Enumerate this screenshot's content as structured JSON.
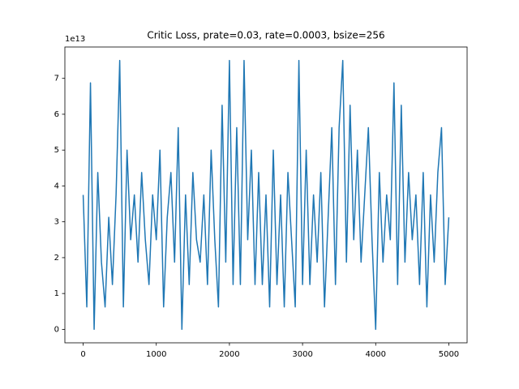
{
  "chart_data": {
    "type": "line",
    "title": "Critic Loss, prate=0.03, rate=0.0003, bsize=256",
    "y_offset_label": "1e13",
    "x": [
      0,
      50,
      100,
      150,
      200,
      250,
      300,
      350,
      400,
      450,
      500,
      550,
      600,
      650,
      700,
      750,
      800,
      850,
      900,
      950,
      1000,
      1050,
      1100,
      1150,
      1200,
      1250,
      1300,
      1350,
      1400,
      1450,
      1500,
      1550,
      1600,
      1650,
      1700,
      1750,
      1800,
      1850,
      1900,
      1950,
      2000,
      2050,
      2100,
      2150,
      2200,
      2250,
      2300,
      2350,
      2400,
      2450,
      2500,
      2550,
      2600,
      2650,
      2700,
      2750,
      2800,
      2850,
      2900,
      2950,
      3000,
      3050,
      3100,
      3150,
      3200,
      3250,
      3300,
      3350,
      3400,
      3450,
      3500,
      3550,
      3600,
      3650,
      3700,
      3750,
      3800,
      3850,
      3900,
      3950,
      4000,
      4050,
      4100,
      4150,
      4200,
      4250,
      4300,
      4350,
      4400,
      4450,
      4500,
      4550,
      4600,
      4650,
      4700,
      4750,
      4800,
      4850,
      4900,
      4950,
      5000
    ],
    "series": [
      {
        "color": "#1f77b4",
        "values": [
          3.75,
          0.625,
          6.875,
          0,
          4.375,
          1.875,
          0.625,
          3.125,
          1.25,
          3.75,
          7.5,
          0.625,
          5,
          2.5,
          3.75,
          1.875,
          4.375,
          2.5,
          1.25,
          3.75,
          2.5,
          5,
          0.625,
          3.125,
          4.375,
          1.875,
          5.625,
          0,
          3.75,
          1.25,
          4.375,
          2.5,
          1.875,
          3.75,
          1.25,
          5,
          2.5,
          0.625,
          6.25,
          1.875,
          7.5,
          1.25,
          5.625,
          1.25,
          7.5,
          2.5,
          5,
          1.25,
          4.375,
          1.25,
          3.75,
          0.625,
          5,
          1.25,
          3.75,
          0.625,
          4.375,
          2.5,
          0.625,
          7.5,
          1.25,
          5,
          1.25,
          3.75,
          1.875,
          4.375,
          0.625,
          3.125,
          5.625,
          1.25,
          5.625,
          7.5,
          1.875,
          6.25,
          2.5,
          5,
          1.875,
          3.75,
          5.625,
          2.5,
          0,
          4.375,
          1.875,
          3.75,
          2.5,
          6.875,
          1.25,
          6.25,
          1.875,
          4.375,
          2.5,
          3.75,
          1.25,
          4.375,
          0.625,
          3.75,
          1.875,
          4.375,
          5.625,
          1.25,
          3.125
        ]
      }
    ],
    "xlim": [
      -250,
      5250
    ],
    "ylim": [
      -0.375,
      7.875
    ],
    "xticks": [
      0,
      1000,
      2000,
      3000,
      4000,
      5000
    ],
    "yticks": [
      0,
      1,
      2,
      3,
      4,
      5,
      6,
      7
    ]
  }
}
